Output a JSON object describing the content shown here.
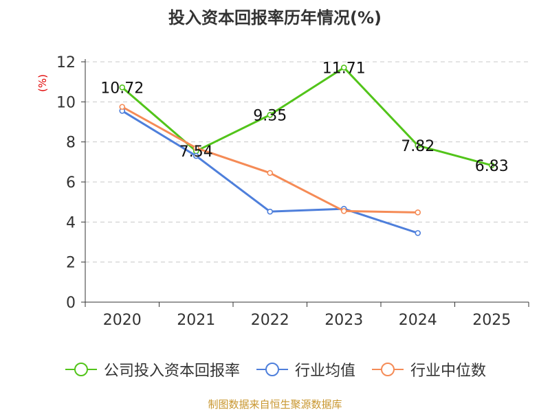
{
  "chart_data": {
    "type": "line",
    "title": "投入资本回报率历年情况(%)",
    "ylabel": "(%)",
    "xlabel": "",
    "categories": [
      "2020",
      "2021",
      "2022",
      "2023",
      "2024",
      "2025"
    ],
    "ylim": [
      0,
      12
    ],
    "yticks": [
      0,
      2,
      4,
      6,
      8,
      10,
      12
    ],
    "grid": true,
    "legend_position": "bottom",
    "series": [
      {
        "name": "公司投入资本回报率",
        "color": "#52c41a",
        "values": [
          10.72,
          7.54,
          9.35,
          11.71,
          7.82,
          6.83
        ],
        "labels": [
          "10.72",
          "7.54",
          "9.35",
          "11.71",
          "7.82",
          "6.83"
        ]
      },
      {
        "name": "行业均值",
        "color": "#4e7fdb",
        "values": [
          9.55,
          7.3,
          4.52,
          4.66,
          3.45,
          null
        ]
      },
      {
        "name": "行业中位数",
        "color": "#f58b56",
        "values": [
          9.75,
          7.7,
          6.45,
          4.55,
          4.48,
          null
        ]
      }
    ]
  },
  "footer": {
    "source": "制图数据来自恒生聚源数据库"
  }
}
